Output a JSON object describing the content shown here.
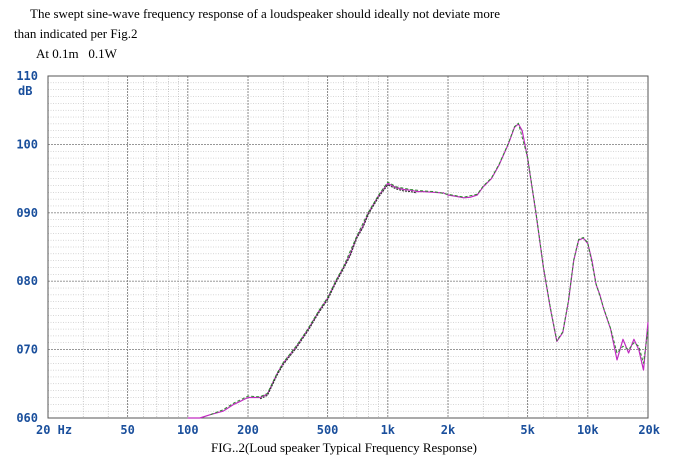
{
  "caption": {
    "line1": "The swept sine-wave frequency response of a loudspeaker should ideally not deviate more",
    "line2": "than indicated per Fig.2",
    "condition": "At 0.1m   0.1W"
  },
  "figure_caption": "FIG..2(Loud speaker Typical Frequency Response)",
  "chart_data": {
    "type": "line",
    "title": "",
    "xlabel": "",
    "ylabel": "dB",
    "x_scale": "log",
    "xlim": [
      20,
      20000
    ],
    "ylim": [
      60,
      110
    ],
    "x_ticks": [
      {
        "value": 20,
        "label": "20 Hz"
      },
      {
        "value": 50,
        "label": "50"
      },
      {
        "value": 100,
        "label": "100"
      },
      {
        "value": 200,
        "label": "200"
      },
      {
        "value": 500,
        "label": "500"
      },
      {
        "value": 1000,
        "label": "1k"
      },
      {
        "value": 2000,
        "label": "2k"
      },
      {
        "value": 5000,
        "label": "5k"
      },
      {
        "value": 10000,
        "label": "10k"
      },
      {
        "value": 20000,
        "label": "20k"
      }
    ],
    "y_ticks": [
      {
        "value": 110,
        "label": "110"
      },
      {
        "value": 100,
        "label": "100"
      },
      {
        "value": 90,
        "label": "090"
      },
      {
        "value": 80,
        "label": "080"
      },
      {
        "value": 70,
        "label": "070"
      },
      {
        "value": 60,
        "label": "060"
      }
    ],
    "grid": true,
    "colors": {
      "curve_a": "#c02ac0",
      "curve_b": "#2e8b2e",
      "curve_dark": "#333333",
      "axis_text": "#1a4f9c",
      "grid": "#8a8a8a"
    },
    "series": [
      {
        "color": "#c02ac0",
        "x": [
          100,
          115,
          130,
          150,
          170,
          185,
          200,
          230,
          250,
          280,
          300,
          350,
          400,
          450,
          500,
          550,
          600,
          650,
          700,
          750,
          800,
          900,
          1000,
          1100,
          1200,
          1300,
          1400,
          1500,
          1700,
          1900,
          2000,
          2200,
          2400,
          2600,
          2800,
          3000,
          3300,
          3600,
          4000,
          4300,
          4500,
          4700,
          5000,
          5500,
          6000,
          6500,
          7000,
          7500,
          8000,
          8500,
          9000,
          9500,
          10000,
          10500,
          11000,
          11500,
          12000,
          13000,
          14000,
          15000,
          16000,
          17000,
          18000,
          19000,
          20000
        ],
        "y": [
          60,
          60,
          60.5,
          61,
          62,
          62.5,
          63,
          63,
          63.5,
          66.5,
          68,
          70.5,
          73,
          75.5,
          77.5,
          80,
          82,
          84,
          86.5,
          88,
          90,
          92.5,
          94.3,
          93.7,
          93.4,
          93.3,
          93.1,
          93.1,
          93,
          92.9,
          92.6,
          92.4,
          92.2,
          92.3,
          92.6,
          93.8,
          95,
          97,
          100,
          102.5,
          103,
          102,
          98,
          90,
          82,
          76,
          71.2,
          72.5,
          77,
          83,
          86,
          86.3,
          85.5,
          83,
          79.5,
          78,
          76,
          73,
          68.5,
          71.5,
          69.5,
          71.5,
          70,
          67,
          74
        ]
      },
      {
        "color": "#2e8b2e",
        "x": [
          130,
          150,
          170,
          185,
          200,
          230,
          250,
          280,
          300,
          350,
          400,
          450,
          500,
          550,
          600,
          700,
          800,
          900,
          1000,
          1100,
          1300,
          1500,
          1700,
          2000,
          2400,
          2800,
          3000,
          3300,
          3600,
          4000,
          4300,
          4500,
          5000,
          5500,
          6000,
          6500,
          7000,
          7500,
          8000,
          8500,
          9000,
          9500,
          10000,
          11000,
          12000,
          13000,
          14000,
          15000,
          16000,
          17000,
          18000,
          19000,
          20000
        ],
        "y": [
          60.5,
          61.2,
          62.2,
          62.7,
          63.2,
          63.1,
          63.6,
          66.6,
          68.1,
          70.6,
          73.1,
          75.6,
          77.6,
          80.1,
          82.1,
          86.6,
          90.1,
          92.6,
          94.5,
          93.8,
          93.4,
          93.2,
          93.1,
          92.7,
          92.3,
          92.7,
          93.9,
          95.1,
          97.1,
          100.1,
          102.6,
          103.1,
          98.1,
          90.1,
          82.1,
          76.1,
          71.3,
          72.6,
          77.1,
          83.1,
          86.1,
          86.4,
          85.6,
          79.6,
          76.1,
          73.1,
          69.5,
          70.5,
          70,
          71,
          70.5,
          68,
          73
        ]
      }
    ]
  }
}
